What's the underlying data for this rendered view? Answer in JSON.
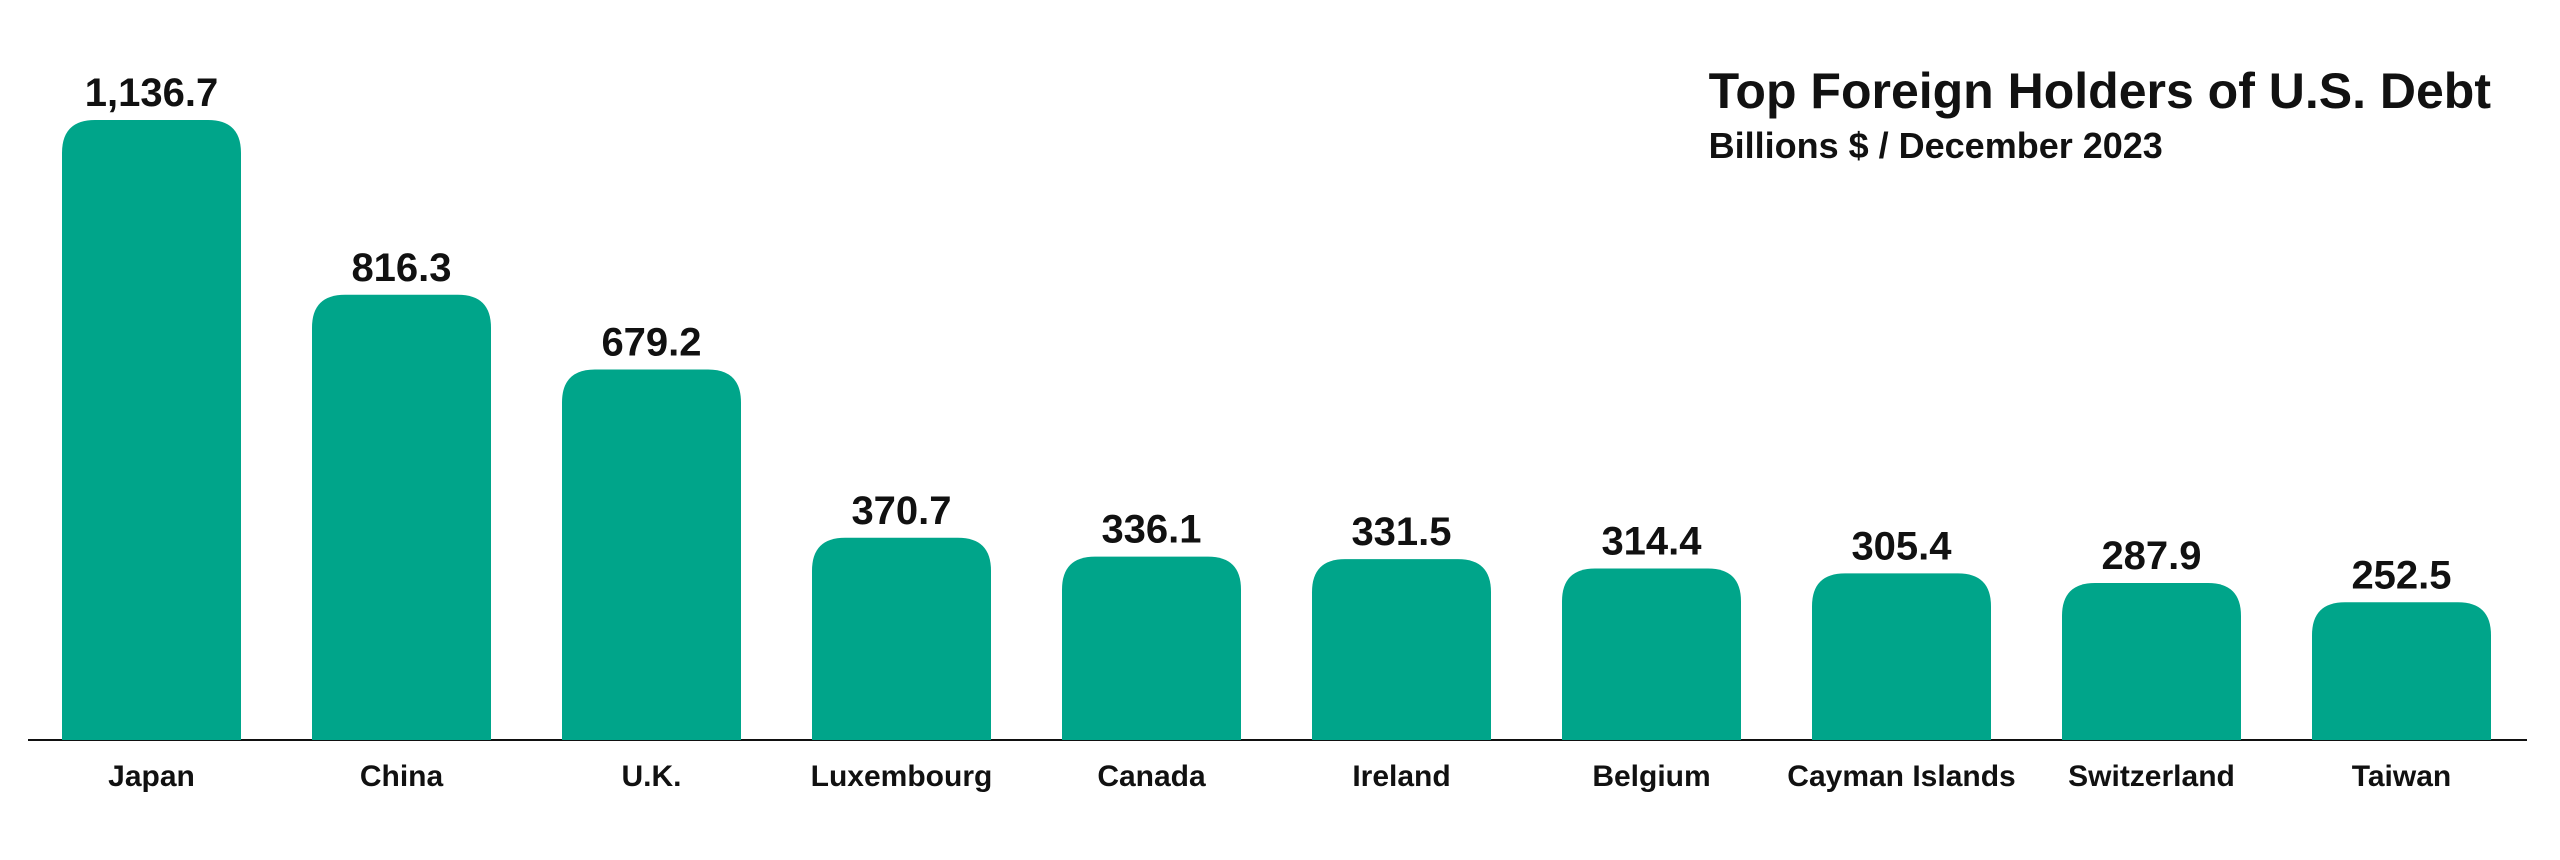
{
  "chart_data": {
    "type": "bar",
    "title": "Top Foreign Holders of U.S. Debt",
    "subtitle": "Billions $ / December 2023",
    "categories": [
      "Japan",
      "China",
      "U.K.",
      "Luxembourg",
      "Canada",
      "Ireland",
      "Belgium",
      "Cayman Islands",
      "Switzerland",
      "Taiwan"
    ],
    "values": [
      1136.7,
      816.3,
      679.2,
      370.7,
      336.1,
      331.5,
      314.4,
      305.4,
      287.9,
      252.5
    ],
    "value_labels": [
      "1,136.7",
      "816.3",
      "679.2",
      "370.7",
      "336.1",
      "331.5",
      "314.4",
      "305.4",
      "287.9",
      "252.5"
    ],
    "color": "#00a58a"
  }
}
